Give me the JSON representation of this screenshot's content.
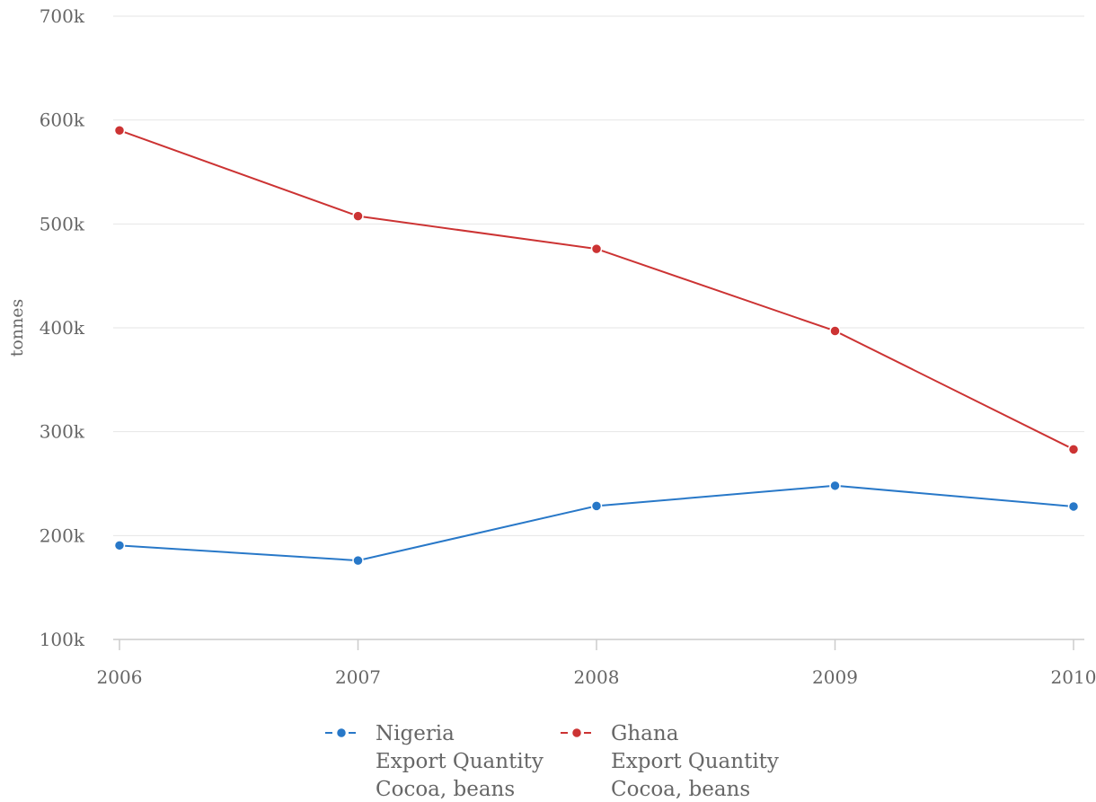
{
  "chart_data": {
    "type": "line",
    "x": [
      "2006",
      "2007",
      "2008",
      "2009",
      "2010"
    ],
    "ylabel": "tonnes",
    "ylim": [
      100000,
      700000
    ],
    "yticks": [
      100000,
      200000,
      300000,
      400000,
      500000,
      600000,
      700000
    ],
    "ytick_labels": [
      "100k",
      "200k",
      "300k",
      "400k",
      "500k",
      "600k",
      "700k"
    ],
    "grid": true,
    "legend_position": "bottom",
    "series": [
      {
        "name": "Nigeria",
        "legend_lines": [
          "Nigeria",
          "Export Quantity",
          "Cocoa, beans"
        ],
        "color": "#2878c8",
        "values": [
          190500,
          176000,
          228500,
          248000,
          228000
        ]
      },
      {
        "name": "Ghana",
        "legend_lines": [
          "Ghana",
          "Export Quantity",
          "Cocoa, beans"
        ],
        "color": "#cc3333",
        "values": [
          590000,
          507500,
          476000,
          397000,
          283000
        ]
      }
    ]
  }
}
